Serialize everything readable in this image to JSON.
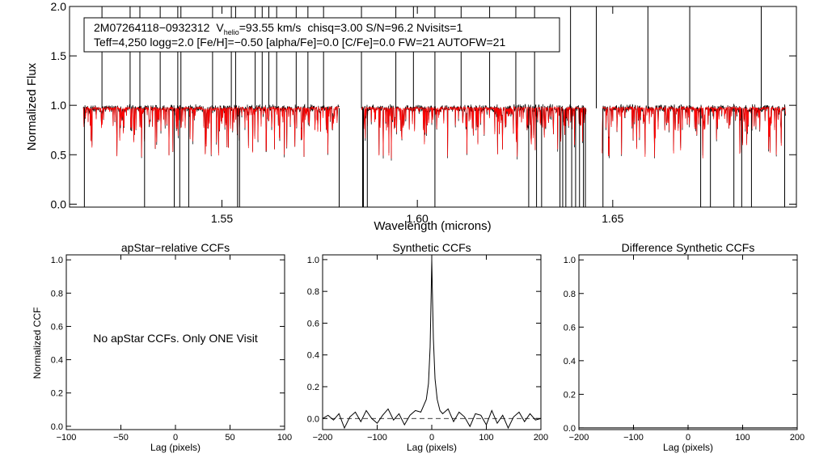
{
  "chart_data": [
    {
      "id": "spectrum",
      "type": "line",
      "xlabel": "Wavelength (microns)",
      "ylabel": "Normalized Flux",
      "xlim": [
        1.511,
        1.697
      ],
      "ylim": [
        -0.03,
        2.0
      ],
      "xticks": [
        1.55,
        1.6,
        1.65
      ],
      "xtick_labels": [
        "1.55",
        "1.60",
        "1.65"
      ],
      "yticks": [
        0.0,
        0.5,
        1.0,
        1.5,
        2.0
      ],
      "ytick_labels": [
        "0.0",
        "0.5",
        "1.0",
        "1.5",
        "2.0"
      ],
      "info_line1": {
        "star": "2M07264118−0932312",
        "v_label": "V",
        "v_sub": "helio",
        "v_value": "=93.55 km/s",
        "rest": "chisq=3.00  S/N=96.2  Nvisits=1"
      },
      "info_line2": "Teff=4,250 logg=2.0 [Fe/H]=−0.50 [alpha/Fe]=0.0 [C/Fe]=0.0 FW=21 AUTOFW=21",
      "chips": [
        [
          1.5145,
          1.58
        ],
        [
          1.5857,
          1.6432
        ],
        [
          1.6473,
          1.6942
        ]
      ],
      "continuum": 0.97,
      "observed_color": "#000000",
      "model_color": "#ff0000",
      "emission_spikes": [
        1.5193,
        1.5265,
        1.529,
        1.5342,
        1.5387,
        1.5395,
        1.5476,
        1.5524,
        1.5535,
        1.5585,
        1.5603,
        1.562,
        1.564,
        1.569,
        1.572,
        1.576,
        1.5857,
        1.5945,
        1.599,
        1.6045,
        1.6112,
        1.6185,
        1.6252,
        1.63,
        1.6392,
        1.6458,
        1.659,
        1.6697,
        1.688
      ],
      "deep_absorptions": [
        1.5302,
        1.5378,
        1.5392,
        1.5415,
        1.554,
        1.5545,
        1.5862,
        1.5872,
        1.6045,
        1.6285,
        1.6305,
        1.6318,
        1.6365,
        1.6372,
        1.638,
        1.6395,
        1.6405,
        1.6415,
        1.6425,
        1.6725,
        1.675,
        1.681,
        1.683,
        1.6855
      ],
      "chip_edge_drops": [
        1.5148,
        1.58,
        1.586,
        1.643,
        1.6475,
        1.694
      ]
    },
    {
      "id": "apstar-ccf",
      "type": "line",
      "title": "apStar−relative CCFs",
      "xlabel": "Lag (pixels)",
      "ylabel": "Normalized CCF",
      "xlim": [
        -100,
        100
      ],
      "ylim": [
        -0.02,
        1.03
      ],
      "xticks": [
        -100,
        -50,
        0,
        50,
        100
      ],
      "xtick_labels": [
        "−100",
        "−50",
        "0",
        "50",
        "100"
      ],
      "yticks": [
        0.0,
        0.2,
        0.4,
        0.6,
        0.8,
        1.0
      ],
      "ytick_labels": [
        "0.0",
        "0.2",
        "0.4",
        "0.6",
        "0.8",
        "1.0"
      ],
      "message": "No apStar CCFs.  Only ONE Visit"
    },
    {
      "id": "synthetic-ccf",
      "type": "line",
      "title": "Synthetic CCFs",
      "xlabel": "Lag (pixels)",
      "xlim": [
        -200,
        200
      ],
      "ylim": [
        -0.07,
        1.03
      ],
      "xticks": [
        -200,
        -100,
        0,
        100,
        200
      ],
      "xtick_labels": [
        "−200",
        "−100",
        "0",
        "100",
        "200"
      ],
      "yticks": [
        0.0,
        0.2,
        0.4,
        0.6,
        0.8,
        1.0
      ],
      "ytick_labels": [
        "0.0",
        "0.2",
        "0.4",
        "0.6",
        "0.8",
        "1.0"
      ],
      "peak_lag": 0,
      "peak_value": 1.0,
      "zero_line": "dashed",
      "x": [
        -200,
        -190,
        -180,
        -170,
        -160,
        -150,
        -140,
        -130,
        -120,
        -110,
        -100,
        -90,
        -80,
        -70,
        -60,
        -50,
        -40,
        -30,
        -20,
        -15,
        -10,
        -6,
        -3,
        -1,
        0,
        1,
        3,
        6,
        10,
        15,
        20,
        30,
        40,
        50,
        60,
        70,
        80,
        90,
        100,
        110,
        120,
        130,
        140,
        150,
        160,
        170,
        180,
        190,
        200
      ],
      "y": [
        0.0,
        0.02,
        -0.01,
        0.03,
        -0.06,
        0.01,
        0.04,
        -0.02,
        0.05,
        0.0,
        -0.03,
        0.02,
        0.06,
        -0.01,
        0.03,
        -0.04,
        0.02,
        0.05,
        0.04,
        0.08,
        0.12,
        0.22,
        0.45,
        0.8,
        1.0,
        0.82,
        0.5,
        0.25,
        0.12,
        0.05,
        0.03,
        0.06,
        -0.02,
        0.04,
        0.01,
        -0.05,
        0.03,
        0.02,
        -0.04,
        0.05,
        -0.03,
        0.02,
        -0.06,
        0.01,
        0.04,
        -0.02,
        0.03,
        -0.01,
        0.0
      ]
    },
    {
      "id": "difference-ccf",
      "type": "line",
      "title": "Difference Synthetic CCFs",
      "xlabel": "Lag (pixels)",
      "xlim": [
        -200,
        200
      ],
      "ylim": [
        -0.01,
        1.03
      ],
      "xticks": [
        -200,
        -100,
        0,
        100,
        200
      ],
      "xtick_labels": [
        "−200",
        "−100",
        "0",
        "100",
        "200"
      ],
      "yticks": [
        0.0,
        0.2,
        0.4,
        0.6,
        0.8,
        1.0
      ],
      "ytick_labels": [
        "0.0",
        "0.2",
        "0.4",
        "0.6",
        "0.8",
        "1.0"
      ],
      "x": [
        -200,
        200
      ],
      "y": [
        0.0,
        0.0
      ]
    }
  ]
}
